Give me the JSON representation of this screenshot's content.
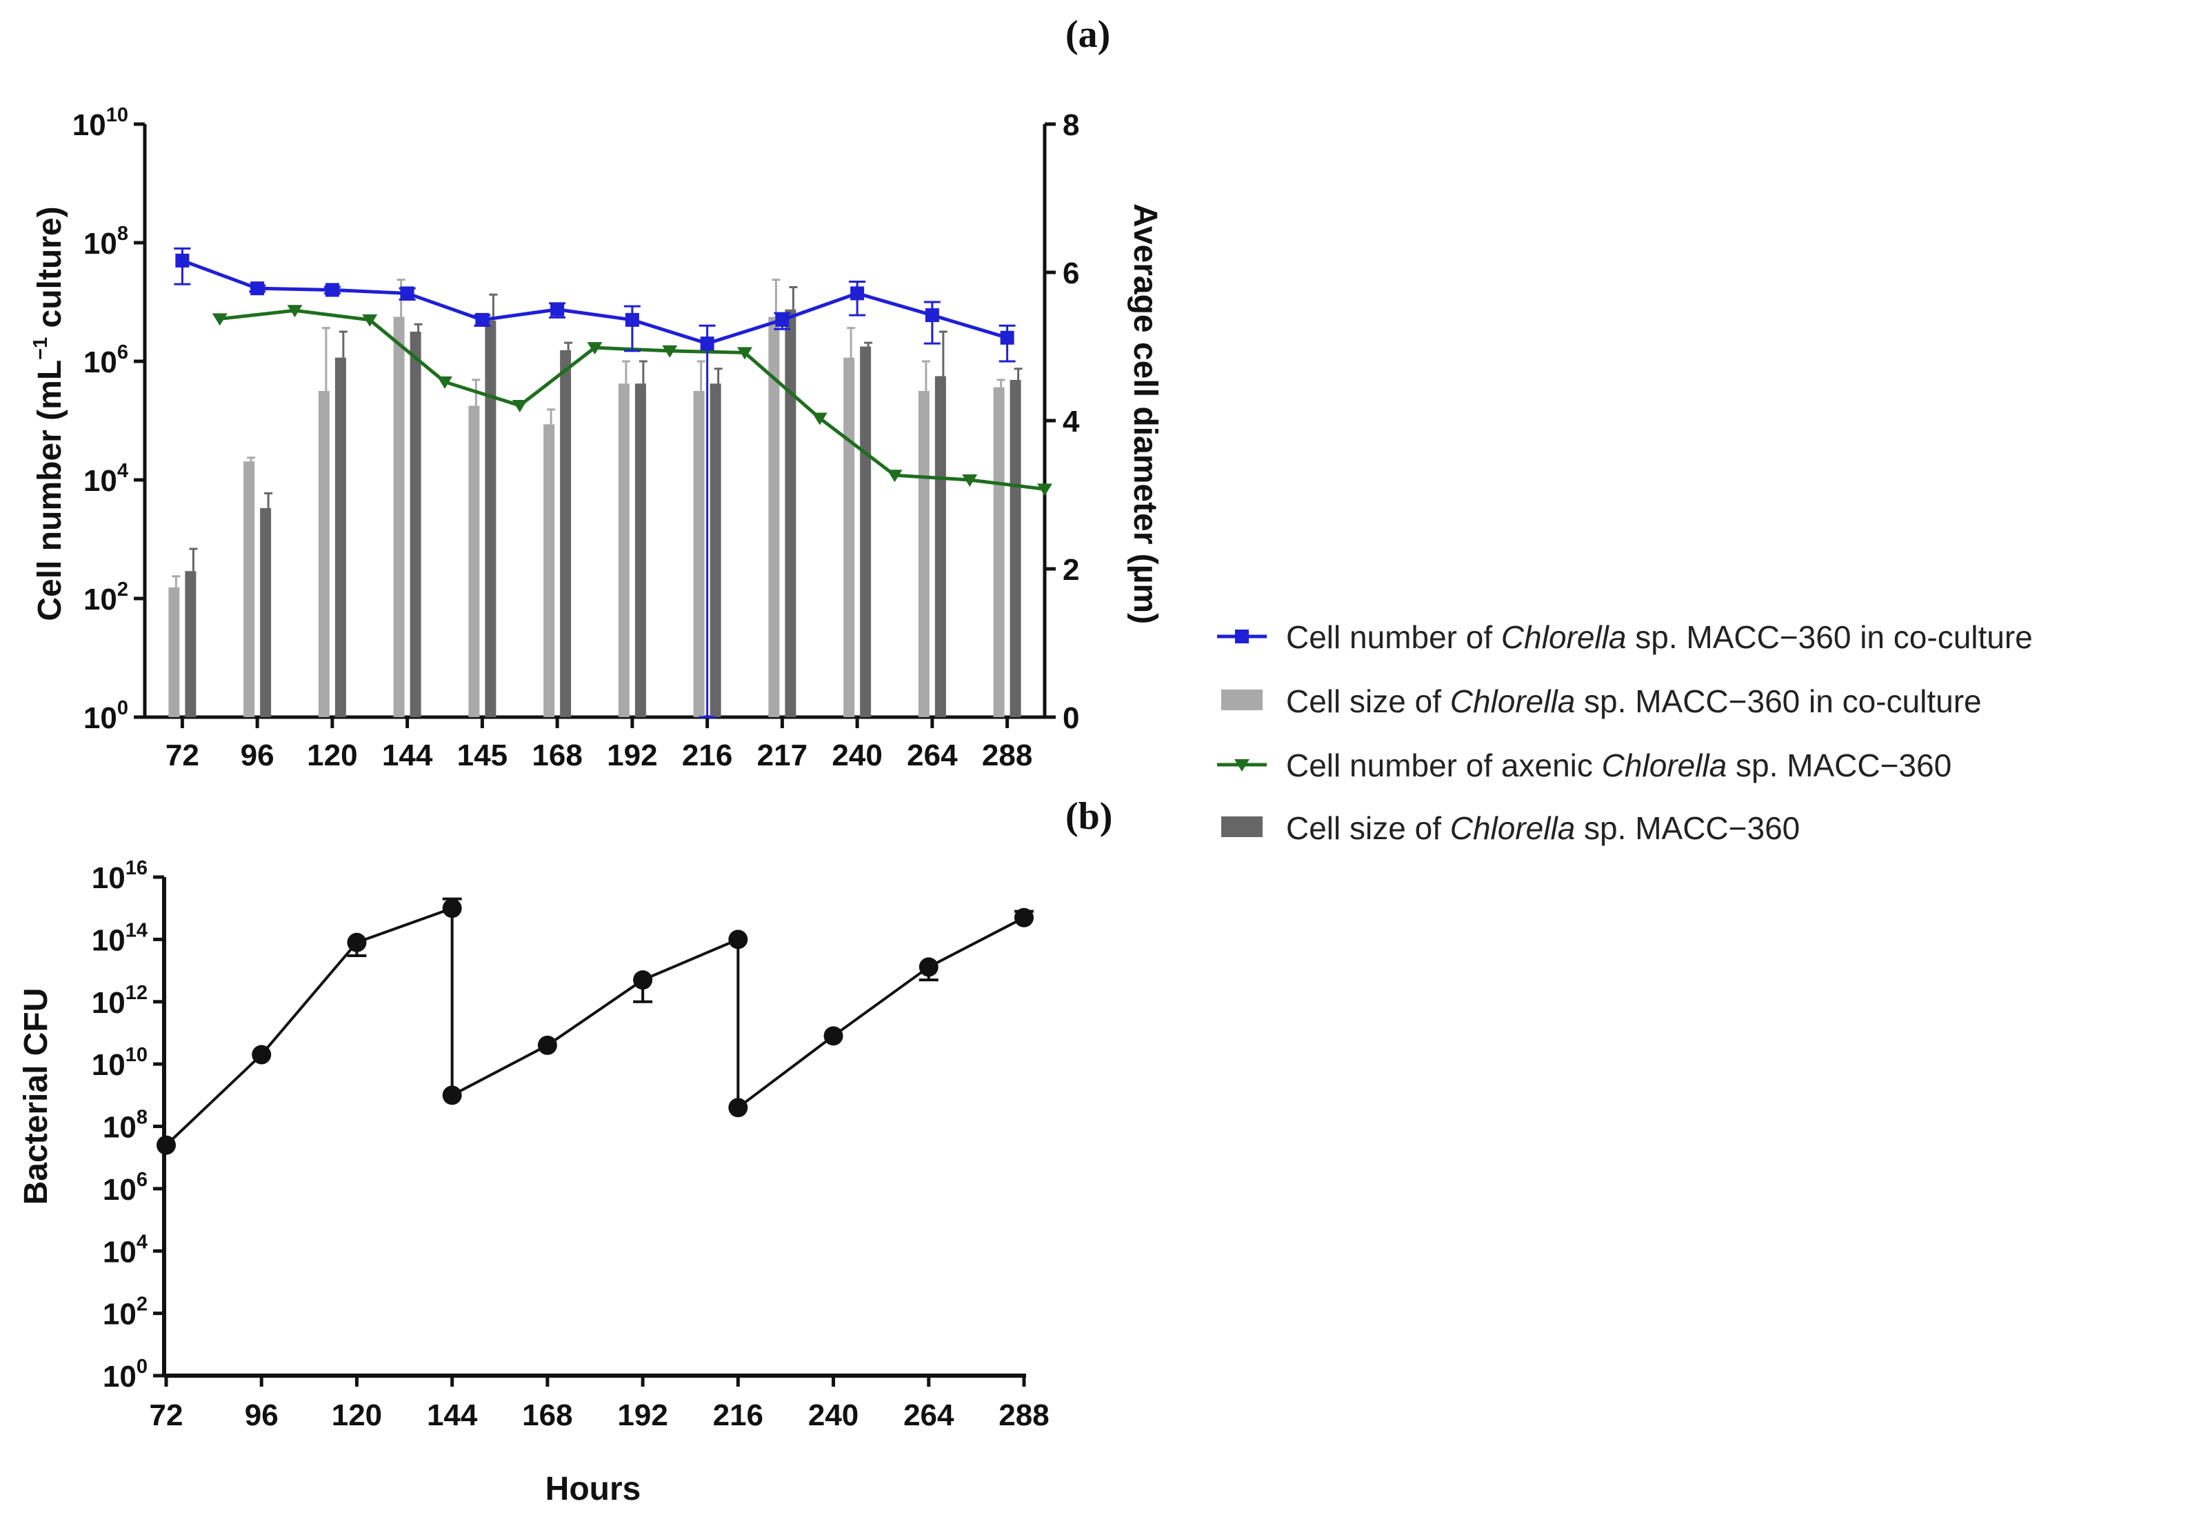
{
  "colors": {
    "coculture_line": "#1f1fd6",
    "axenic_line": "#1e6e1e",
    "coculture_bar": "#a9a9a9",
    "axenic_bar": "#666666",
    "bacterial_line": "#111111"
  },
  "chart_data": [
    {
      "panel": "(a)",
      "type": "bar",
      "categories": [
        "72",
        "96",
        "120",
        "144",
        "145",
        "168",
        "192",
        "216",
        "217",
        "240",
        "264",
        "288"
      ],
      "xlabel": "",
      "ylabel": "Cell number (mL⁻¹ culture)",
      "ylabel_parts": [
        "Cell number (mL",
        "−1",
        " culture)"
      ],
      "ylabel_right": "Average cell diameter (µm)",
      "y_scale": "log",
      "ylim": [
        1,
        10000000000
      ],
      "yticks": [
        {
          "base": "10",
          "exp": "0",
          "value": 1
        },
        {
          "base": "10",
          "exp": "2",
          "value": 100
        },
        {
          "base": "10",
          "exp": "4",
          "value": 10000
        },
        {
          "base": "10",
          "exp": "6",
          "value": 1000000
        },
        {
          "base": "10",
          "exp": "8",
          "value": 100000000
        },
        {
          "base": "10",
          "exp": "10",
          "value": 10000000000
        }
      ],
      "ylim_right": [
        0,
        8
      ],
      "yticks_right": [
        "0",
        "2",
        "4",
        "6",
        "8"
      ],
      "bar_series": [
        {
          "name": "Cell size of Chlorella sp. MACC−360 in co-culture",
          "values": [
            1.75,
            3.45,
            4.4,
            5.4,
            4.2,
            3.95,
            4.5,
            4.4,
            5.4,
            4.85,
            4.4,
            4.45
          ],
          "err": [
            0.15,
            0.05,
            0.85,
            0.5,
            0.35,
            0.2,
            0.3,
            0.4,
            0.5,
            0.4,
            0.4,
            0.1
          ]
        },
        {
          "name": "Cell size of Chlorella sp. MACC−360",
          "values": [
            1.97,
            2.82,
            4.85,
            5.2,
            5.35,
            4.95,
            4.5,
            4.5,
            5.5,
            5.0,
            4.6,
            4.55
          ],
          "err": [
            0.3,
            0.2,
            0.35,
            0.1,
            0.35,
            0.1,
            0.3,
            0.2,
            0.3,
            0.05,
            0.6,
            0.15
          ]
        }
      ],
      "series": [
        {
          "name": "Cell number of Chlorella sp. MACC−360 in co-culture",
          "x_pos": [
            0,
            1,
            2,
            3,
            4,
            5,
            6,
            7,
            8,
            9,
            10,
            11
          ],
          "values": [
            50000000,
            17000000,
            16000000,
            14000000,
            5000000,
            7500000,
            5000000,
            2000000,
            5000000,
            14000000,
            6000000,
            2500000
          ],
          "err": [
            30000000,
            2000000,
            2000000,
            3000000,
            1000000,
            2000000,
            3500000,
            2000000,
            1500000,
            8000000,
            4000000,
            1500000
          ]
        },
        {
          "name": "Cell number of axenic Chlorella sp. MACC−360",
          "x_pos": [
            0.5,
            1.5,
            2.5,
            3.5,
            4.5,
            5.5,
            6.5,
            7.5,
            8.5,
            9.5,
            10.5,
            11.5
          ],
          "values": [
            5200000,
            7200000,
            5000000,
            450000,
            180000,
            1700000,
            1500000,
            1400000,
            110000,
            12000,
            10000,
            7000
          ],
          "err": [
            0,
            0,
            0,
            0,
            0,
            0,
            0,
            0,
            0,
            0,
            0,
            0
          ]
        }
      ]
    },
    {
      "panel": "(b)",
      "type": "line",
      "x": [
        72,
        96,
        120,
        144,
        144,
        168,
        192,
        216,
        216,
        240,
        264,
        288
      ],
      "y": [
        25000000,
        20000000000,
        80000000000000.0,
        1000000000000000.0,
        1000000000.0,
        40000000000.0,
        5000000000000.0,
        100000000000000.0,
        400000000.0,
        80000000000.0,
        13000000000000.0,
        500000000000000.0
      ],
      "err_low": [
        0,
        0,
        50000000000000.0,
        0,
        0,
        0,
        4000000000000.0,
        0,
        0,
        0,
        8000000000000.0,
        0
      ],
      "err_high": [
        0,
        0,
        0,
        1000000000000000.0,
        0,
        0,
        0,
        0,
        0,
        0,
        0,
        300000000000000.0
      ],
      "xticks": [
        "72",
        "96",
        "120",
        "144",
        "168",
        "192",
        "216",
        "240",
        "264",
        "288"
      ],
      "xlim": [
        72,
        288
      ],
      "xlabel": "Hours",
      "ylabel": "Bacterial CFU",
      "y_scale": "log",
      "ylim": [
        1,
        1e+16
      ],
      "yticks": [
        {
          "base": "10",
          "exp": "0",
          "value": 1
        },
        {
          "base": "10",
          "exp": "2",
          "value": 100
        },
        {
          "base": "10",
          "exp": "4",
          "value": 10000
        },
        {
          "base": "10",
          "exp": "6",
          "value": 1000000
        },
        {
          "base": "10",
          "exp": "8",
          "value": 100000000
        },
        {
          "base": "10",
          "exp": "10",
          "value": 10000000000
        },
        {
          "base": "10",
          "exp": "12",
          "value": 1000000000000.0
        },
        {
          "base": "10",
          "exp": "14",
          "value": 100000000000000.0
        },
        {
          "base": "10",
          "exp": "16",
          "value": 1e+16
        }
      ]
    }
  ],
  "legend": {
    "placement": "right",
    "items": [
      {
        "kind": "line-square",
        "color": "#1f1fd6",
        "pre": "Cell number of ",
        "italic": "Chlorella",
        "post": " sp. MACC−360 in co-culture"
      },
      {
        "kind": "bar",
        "color": "#a9a9a9",
        "pre": "Cell size of ",
        "italic": "Chlorella",
        "post": " sp. MACC−360 in co-culture"
      },
      {
        "kind": "line-triangle",
        "color": "#1e6e1e",
        "pre": "Cell number of axenic ",
        "italic": "Chlorella",
        "post": " sp. MACC−360"
      },
      {
        "kind": "bar",
        "color": "#666666",
        "pre": "Cell size of ",
        "italic": "Chlorella",
        "post": " sp. MACC−360"
      }
    ]
  }
}
